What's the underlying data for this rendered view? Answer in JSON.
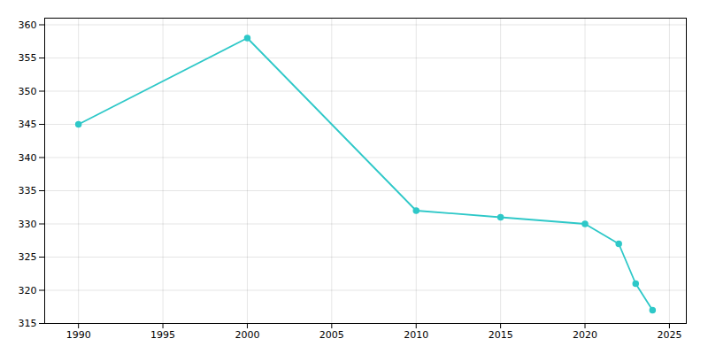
{
  "chart_data": {
    "type": "line",
    "x": [
      1990,
      2000,
      2010,
      2015,
      2020,
      2022,
      2023,
      2024
    ],
    "values": [
      345,
      358,
      332,
      331,
      330,
      327,
      321,
      317
    ],
    "color": "#2ec8c8",
    "marker": "circle",
    "xlim": [
      1988,
      2026
    ],
    "ylim": [
      315,
      361
    ],
    "xticks": [
      1990,
      1995,
      2000,
      2005,
      2010,
      2015,
      2020,
      2025
    ],
    "yticks": [
      315,
      320,
      325,
      330,
      335,
      340,
      345,
      350,
      355,
      360
    ],
    "grid": true
  }
}
